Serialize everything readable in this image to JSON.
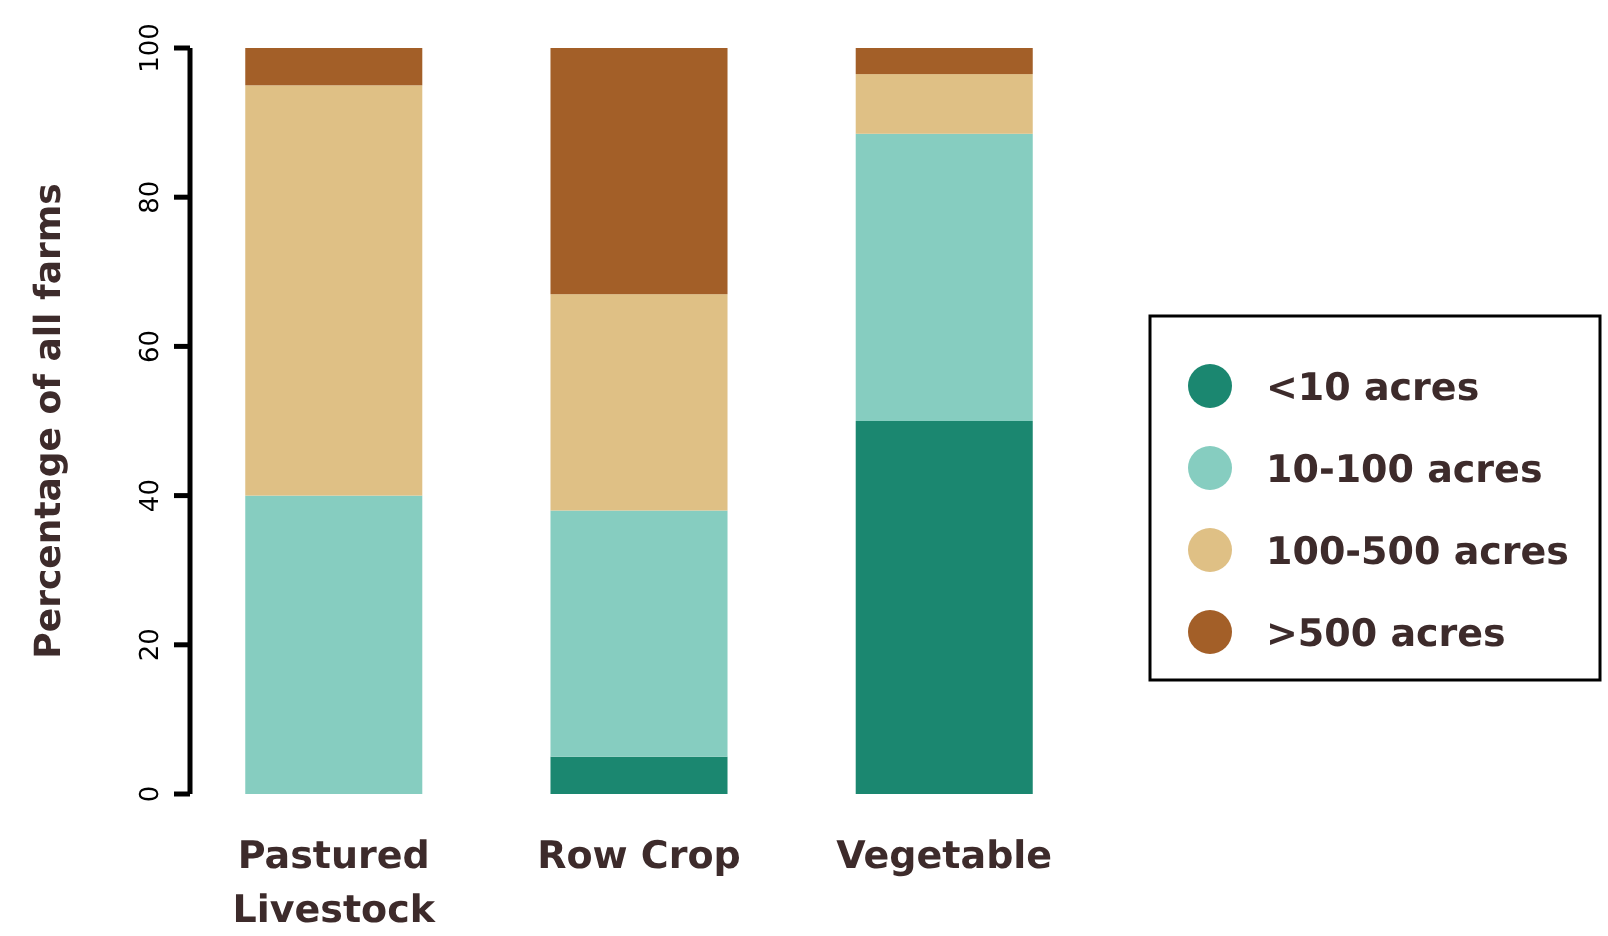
{
  "chart_data": {
    "type": "bar",
    "stacked": true,
    "ylabel": "Percentage of all farms",
    "categories": [
      "Pastured\nLivestock",
      "Row Crop",
      "Vegetable"
    ],
    "ylim": [
      0,
      100
    ],
    "yticks": [
      0,
      20,
      40,
      60,
      80,
      100
    ],
    "grid": false,
    "legend": "right",
    "series": [
      {
        "name": "<10 acres",
        "color": "#1b8770",
        "values": [
          0,
          5,
          50
        ]
      },
      {
        "name": "10-100 acres",
        "color": "#86cdc0",
        "values": [
          40,
          33,
          38.5
        ]
      },
      {
        "name": "100-500 acres",
        "color": "#dfc085",
        "values": [
          55,
          29,
          8
        ]
      },
      {
        "name": ">500 acres",
        "color": "#a35f28",
        "values": [
          5,
          33,
          3.5
        ]
      }
    ]
  }
}
